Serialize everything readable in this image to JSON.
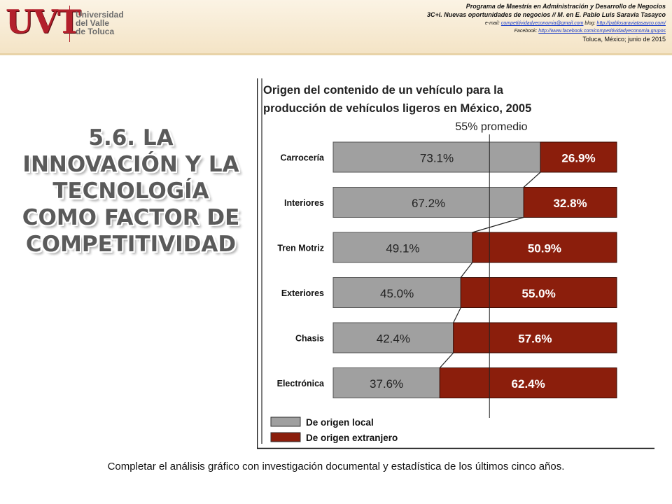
{
  "header": {
    "logo_text": "UVT",
    "university_lines": [
      "Universidad",
      "del Valle",
      "de Toluca"
    ],
    "line1": "Programa de Maestría en Administración y Desarrollo de Negocios",
    "line2": "3C+i. Nuevas oportunidades de negocios // M. en E. Pablo Luis Saravia Tasayco",
    "email_label": "e-mail:",
    "email": "competitividadyeconomia@gmail.com",
    "blog_label": "blog:",
    "blog": "http://pablosaraviatasayco.com/",
    "facebook_label": "Facebook:",
    "facebook": "http://www.facebook.com/competitividadyeconomia.grupos",
    "place_date": "Toluca, México; junio de 2015"
  },
  "slide_title": {
    "lines": [
      "5.6. La",
      "innovación y la",
      "tecnología",
      "como factor de",
      "competitividad"
    ]
  },
  "caption": "Completar el análisis gráfico con investigación documental y estadística de los últimos cinco años.",
  "colors": {
    "local": "#a0a0a0",
    "foreign": "#8b1e0c",
    "brand_red": "#b3202c"
  },
  "chart_data": {
    "type": "bar",
    "orientation": "horizontal",
    "stacked": true,
    "title_lines": [
      "Origen del contenido de un vehículo para la",
      "producción de vehículos ligeros en México, 2005"
    ],
    "reference_label": "55% promedio",
    "reference_value": 55,
    "categories": [
      "Carrocería",
      "Interiores",
      "Tren Motriz",
      "Exteriores",
      "Chasis",
      "Electrónica"
    ],
    "series": [
      {
        "name": "De origen local",
        "values": [
          73.1,
          67.2,
          49.1,
          45.0,
          42.4,
          37.6
        ],
        "labels": [
          "73.1%",
          "67.2%",
          "49.1%",
          "45.0%",
          "42.4%",
          "37.6%"
        ],
        "color": "#a0a0a0"
      },
      {
        "name": "De origen extranjero",
        "values": [
          26.9,
          32.8,
          50.9,
          55.0,
          57.6,
          62.4
        ],
        "labels": [
          "26.9%",
          "32.8%",
          "50.9%",
          "55.0%",
          "57.6%",
          "62.4%"
        ],
        "color": "#8b1e0c"
      }
    ],
    "xlim": [
      0,
      100
    ],
    "legend_position": "bottom-left"
  }
}
